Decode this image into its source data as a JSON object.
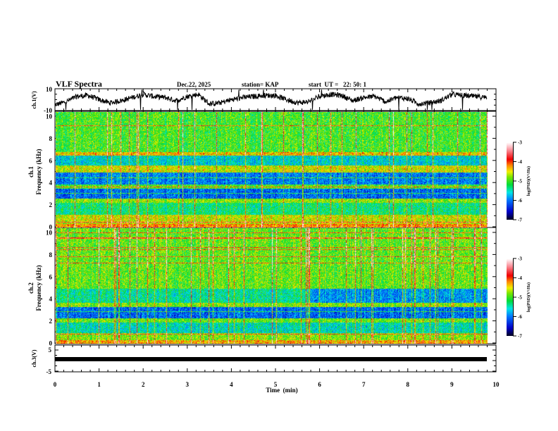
{
  "header": {
    "title": "VLF Spectra",
    "date": "Dec.22, 2025",
    "station": "station= KAP",
    "start": "start  UT =   22: 50: 1"
  },
  "colors": {
    "trace": "#000000",
    "frame": "#000000",
    "background": "#ffffff"
  },
  "chart_data": [
    {
      "type": "line",
      "name": "ch1-voltage",
      "ylabel": "ch.1(V)",
      "ylim": [
        -10,
        10
      ],
      "yticks": [
        "10",
        "-10"
      ],
      "xlim": [
        0,
        10
      ],
      "data_end_min": 9.8,
      "description_values": "noisy waveform between about -9 and 8 V",
      "x": [
        0,
        0.25,
        0.5,
        0.75,
        1,
        1.25,
        1.5,
        1.75,
        2,
        2.25,
        2.5,
        2.75,
        3,
        3.25,
        3.5,
        3.75,
        4,
        4.25,
        4.5,
        4.75,
        5,
        5.25,
        5.5,
        5.75,
        6,
        6.25,
        6.5,
        6.75,
        7,
        7.25,
        7.5,
        7.75,
        8,
        8.25,
        8.5,
        8.75,
        9,
        9.25,
        9.5,
        9.8
      ],
      "y": [
        -5,
        -2,
        3,
        4,
        0,
        -3,
        -1,
        2,
        5,
        3,
        2,
        -1,
        3,
        5,
        -4,
        -3,
        0,
        2,
        3,
        4,
        4,
        0,
        -3,
        -2,
        3,
        5,
        4,
        -1,
        2,
        3,
        -2,
        2,
        1,
        -4,
        -3,
        -1,
        5,
        4,
        3,
        2
      ]
    },
    {
      "type": "heatmap",
      "name": "ch1-spectrogram",
      "ylabel_top": "ch.1",
      "ylabel": "Frequency (kHz)",
      "ylim": [
        0,
        10
      ],
      "yticks": [
        "0",
        "2",
        "4",
        "6",
        "8",
        "10"
      ],
      "xlim": [
        0,
        10
      ],
      "data_end_min": 9.8,
      "colorbar": {
        "label": "log(PSD)(V²/Hz)",
        "range": [
          -7,
          -3
        ],
        "ticks": [
          "-3",
          "-4",
          "-5",
          "-6",
          "-7"
        ]
      },
      "bands_khz_logpsd": [
        {
          "from": 0,
          "to": 0.3,
          "level": -4.2
        },
        {
          "from": 0.3,
          "to": 1.1,
          "level": -4.6
        },
        {
          "from": 1.1,
          "to": 2.2,
          "level": -5.3
        },
        {
          "from": 2.2,
          "to": 2.6,
          "level": -4.8
        },
        {
          "from": 2.6,
          "to": 3.5,
          "level": -6.1
        },
        {
          "from": 3.5,
          "to": 3.9,
          "level": -5.0
        },
        {
          "from": 3.9,
          "to": 5.0,
          "level": -6.0
        },
        {
          "from": 5.0,
          "to": 5.6,
          "level": -4.6
        },
        {
          "from": 5.6,
          "to": 6.5,
          "level": -5.6
        },
        {
          "from": 6.5,
          "to": 6.8,
          "level": -4.4
        },
        {
          "from": 6.8,
          "to": 10,
          "level": -5.0
        }
      ]
    },
    {
      "type": "heatmap",
      "name": "ch2-spectrogram",
      "ylabel_top": "ch.2",
      "ylabel": "Frequency (kHz)",
      "ylim": [
        0,
        10
      ],
      "yticks": [
        "0",
        "2",
        "4",
        "6",
        "8",
        "10"
      ],
      "xlim": [
        0,
        10
      ],
      "data_end_min": 9.8,
      "colorbar": {
        "label": "log(PSD)(V²/Hz)",
        "range": [
          -7,
          -3
        ],
        "ticks": [
          "-3",
          "-4",
          "-5",
          "-6",
          "-7"
        ]
      },
      "bands_khz_logpsd": [
        {
          "from": 0,
          "to": 0.3,
          "level": -4.3
        },
        {
          "from": 0.3,
          "to": 0.9,
          "level": -4.8
        },
        {
          "from": 0.9,
          "to": 1.9,
          "level": -5.5
        },
        {
          "from": 1.9,
          "to": 2.3,
          "level": -4.9
        },
        {
          "from": 2.3,
          "to": 3.3,
          "level": -6.1
        },
        {
          "from": 3.3,
          "to": 3.7,
          "level": -4.8
        },
        {
          "from": 3.7,
          "to": 5.0,
          "level": -5.4
        },
        {
          "from": 5.0,
          "to": 10,
          "level": -4.9
        }
      ]
    },
    {
      "type": "line",
      "name": "ch3-voltage",
      "ylabel": "ch.3(V)",
      "ylim": [
        -5,
        5
      ],
      "yticks": [
        "5",
        "-5"
      ],
      "xlim": [
        0,
        10
      ],
      "data_end_min": 9.8,
      "x": [
        0,
        9.8
      ],
      "y": [
        0,
        0
      ]
    }
  ],
  "xaxis": {
    "label": "Time  (min)",
    "ticks": [
      "0",
      "1",
      "2",
      "3",
      "4",
      "5",
      "6",
      "7",
      "8",
      "9",
      "10"
    ]
  }
}
